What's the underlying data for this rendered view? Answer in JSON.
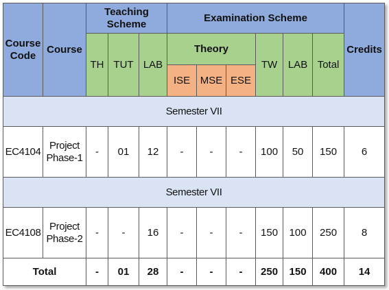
{
  "header": {
    "course_code": "Course Code",
    "course": "Course",
    "teaching_scheme": "Teaching Scheme",
    "examination_scheme": "Examination Scheme",
    "credits": "Credits",
    "th": "TH",
    "tut": "TUT",
    "lab": "LAB",
    "theory": "Theory",
    "tw": "TW",
    "exam_lab": "LAB",
    "total": "Total",
    "ise": "ISE",
    "mse": "MSE",
    "ese": "ESE"
  },
  "sections": [
    {
      "title": "Semester VII",
      "row": {
        "code": "EC4104",
        "course": "Project Phase-1",
        "th": "-",
        "tut": "01",
        "lab": "12",
        "ise": "-",
        "mse": "-",
        "ese": "-",
        "tw": "100",
        "exam_lab": "50",
        "total": "150",
        "credits": "6"
      }
    },
    {
      "title": "Semester VII",
      "row": {
        "code": "EC4108",
        "course": "Project Phase-2",
        "th": "-",
        "tut": "-",
        "lab": "16",
        "ise": "-",
        "mse": "-",
        "ese": "-",
        "tw": "150",
        "exam_lab": "100",
        "total": "250",
        "credits": "8"
      }
    }
  ],
  "totals": {
    "label": "Total",
    "th": "-",
    "tut": "01",
    "lab": "28",
    "ise": "-",
    "mse": "-",
    "ese": "-",
    "tw": "250",
    "exam_lab": "150",
    "total": "400",
    "credits": "14"
  },
  "colors": {
    "header_blue": "#8faadc",
    "header_green": "#a9d18e",
    "header_orange": "#f4b183",
    "band": "#dae3f3"
  }
}
